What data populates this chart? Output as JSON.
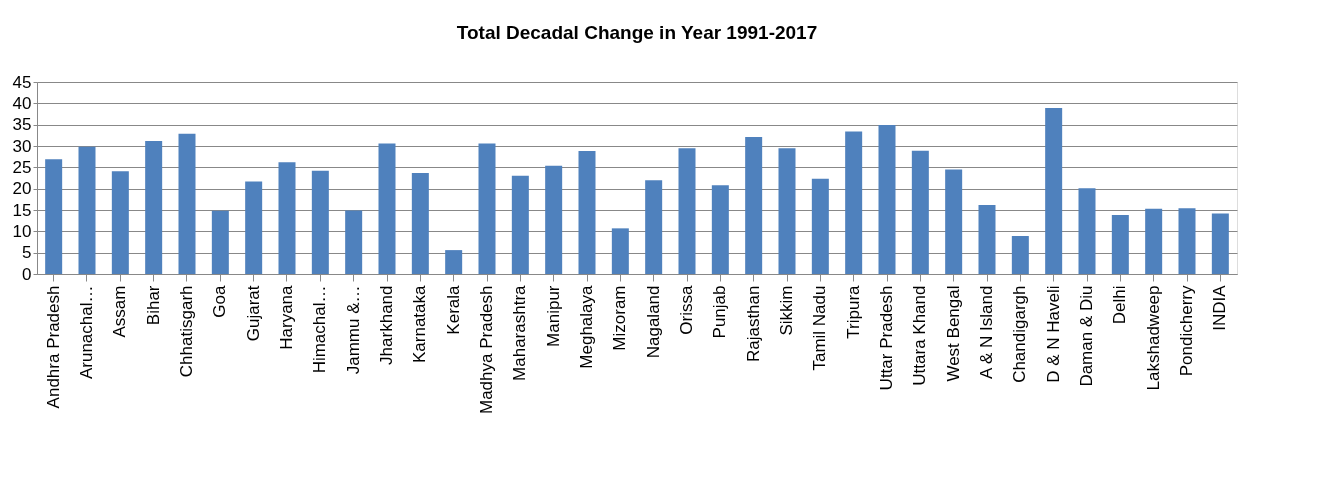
{
  "chart_data": {
    "type": "bar",
    "title": "Total Decadal Change in Year 1991-2017",
    "categories": [
      "Andhra Pradesh",
      "Arunachal…",
      "Assam",
      "Bihar",
      "Chhatisgarh",
      "Goa",
      "Gujarat",
      "Haryana",
      "Himachal…",
      "Jammu &…",
      "Jharkhand",
      "Karnataka",
      "Kerala",
      "Madhya Pradesh",
      "Maharashtra",
      "Manipur",
      "Meghalaya",
      "Mizoram",
      "Nagaland",
      "Orissa",
      "Punjab",
      "Rajasthan",
      "Sikkim",
      "Tamil Nadu",
      "Tripura",
      "Uttar Pradesh",
      "Uttara Khand",
      "West Bengal",
      "A & N Island",
      "Chandigargh",
      "D & N Haveli",
      "Daman & Diu",
      "Delhi",
      "Lakshadweep",
      "Pondicherry",
      "INDIA"
    ],
    "values": [
      26.9,
      29.8,
      24.1,
      31.2,
      32.9,
      14.8,
      21.7,
      26.2,
      24.2,
      14.9,
      30.6,
      23.7,
      5.6,
      30.6,
      23.0,
      25.4,
      28.8,
      10.7,
      22.0,
      29.5,
      20.8,
      32.1,
      29.5,
      22.3,
      33.4,
      34.9,
      28.9,
      24.5,
      16.2,
      8.9,
      38.9,
      20.1,
      13.8,
      15.3,
      15.4,
      14.2
    ],
    "color": "#4f81bd",
    "ylim": [
      0,
      45
    ],
    "yticks": [
      0,
      5,
      10,
      15,
      20,
      25,
      30,
      35,
      40,
      45
    ],
    "grid": "y"
  }
}
